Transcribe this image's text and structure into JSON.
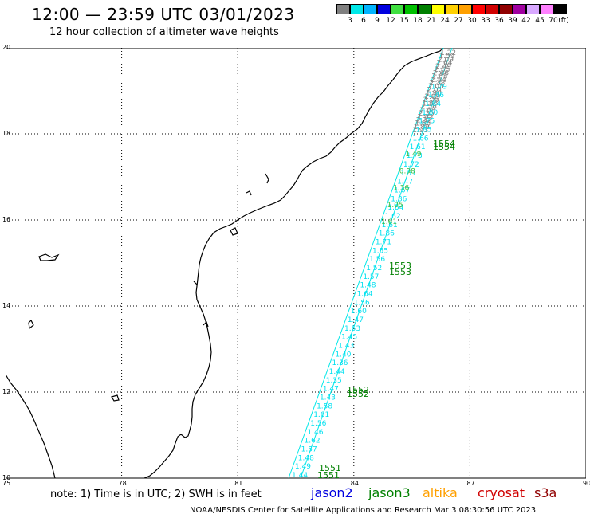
{
  "header": {
    "title": "12:00 — 23:59 UTC 03/01/2023",
    "subtitle": "12 hour collection of altimeter wave heights"
  },
  "legend": {
    "colors": [
      "#808080",
      "#00e8e8",
      "#00b4ff",
      "#0000e0",
      "#40e040",
      "#00c000",
      "#008000",
      "#ffff00",
      "#ffd000",
      "#ffa000",
      "#ff0000",
      "#d00000",
      "#900000",
      "#a000a0",
      "#d8a8ff",
      "#ff80ff",
      "#000000"
    ],
    "labels": [
      "3",
      "6",
      "9",
      "12",
      "15",
      "18",
      "21",
      "24",
      "27",
      "30",
      "33",
      "36",
      "39",
      "42",
      "45",
      "70",
      "(ft)"
    ]
  },
  "axes": {
    "x_ticks": [
      "75",
      "78",
      "81",
      "84",
      "87",
      "90"
    ],
    "y_ticks": [
      "20",
      "18",
      "16",
      "14",
      "12",
      "10"
    ]
  },
  "track_labels": {
    "gray": [
      "1.22",
      "1.59",
      "2.09",
      "2.64",
      "2.49",
      "2.65",
      "2.66",
      "2.68",
      "2.54",
      "2.38",
      "2.05",
      "2.01",
      "1.96",
      "2.09",
      "2.05",
      "1.86",
      "2.56",
      "2.68",
      "2.35",
      "1.85",
      "2.32",
      "1.86",
      "1.89",
      "1.93"
    ],
    "cyan": [
      "1.79",
      "1.46",
      "1.84",
      "1.80",
      "1.75",
      "1.85",
      "1.66",
      "1.61",
      "1.73",
      "1.72",
      "1.51",
      "1.47",
      "1.67",
      "1.86",
      "1.54",
      "1.62",
      "1.61",
      "1.86",
      "1.71",
      "1.55",
      "1.56",
      "1.52",
      "1.57",
      "1.48",
      "1.64",
      "1.56",
      "1.60",
      "1.47",
      "1.53",
      "1.45",
      "1.43",
      "1.40",
      "1.36",
      "1.44",
      "1.35",
      "1.47",
      "1.43",
      "1.58",
      "1.61",
      "1.56",
      "1.46",
      "1.62",
      "1.57",
      "1.48",
      "1.49",
      "1.44"
    ],
    "green": [
      "1.49",
      "0.98",
      "1.36",
      "1.05",
      "1.61"
    ],
    "times": [
      "1554",
      "1554",
      "1553",
      "1553",
      "1552",
      "1552",
      "1551",
      "1551"
    ]
  },
  "satellites": [
    {
      "name": "jason2",
      "color": "#0000e0"
    },
    {
      "name": "jason3",
      "color": "#008000"
    },
    {
      "name": "altika",
      "color": "#ffa000"
    },
    {
      "name": "cryosat",
      "color": "#d00000"
    },
    {
      "name": "s3a",
      "color": "#900000"
    }
  ],
  "footer": {
    "note": "note: 1) Time is in UTC; 2) SWH is in feet",
    "credit": "NOAA/NESDIS Center for Satellite Applications and Research   Mar  3 08:30:56 UTC 2023"
  }
}
